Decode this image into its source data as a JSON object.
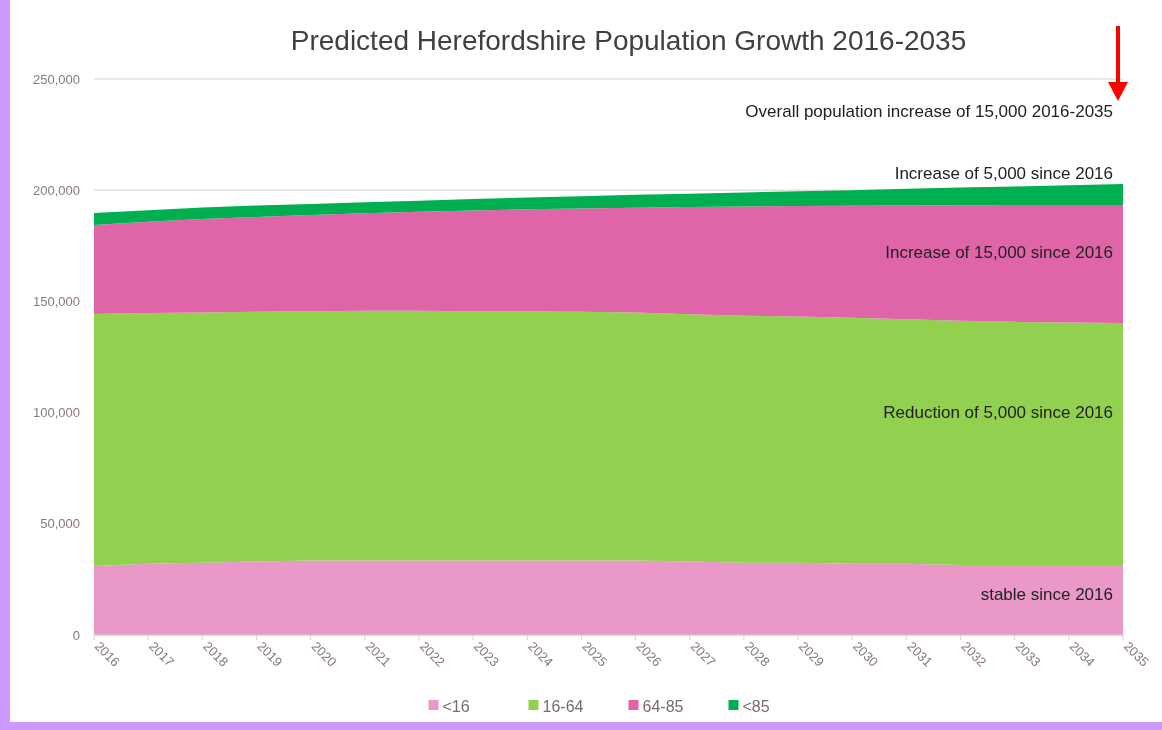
{
  "chart_data": {
    "type": "area",
    "stacked": true,
    "title": "Predicted Herefordshire Population Growth 2016-2035",
    "categories": [
      "2016",
      "2017",
      "2018",
      "2019",
      "2020",
      "2021",
      "2022",
      "2023",
      "2024",
      "2025",
      "2026",
      "2027",
      "2028",
      "2029",
      "2030",
      "2031",
      "2032",
      "2033",
      "2034",
      "2035"
    ],
    "series": [
      {
        "name": "<16",
        "color": "#e998c8",
        "values": [
          31000,
          32000,
          32500,
          33000,
          33500,
          33500,
          33500,
          33500,
          33500,
          33500,
          33500,
          33000,
          32500,
          32500,
          32000,
          32000,
          31500,
          31500,
          31500,
          31500
        ]
      },
      {
        "name": "16-64",
        "color": "#92d050",
        "values": [
          113300,
          112800,
          112500,
          112300,
          112100,
          112300,
          112300,
          112100,
          112000,
          111900,
          111500,
          111200,
          111100,
          110700,
          110600,
          110000,
          109800,
          109300,
          109000,
          108800
        ]
      },
      {
        "name": "64-85",
        "color": "#e064a8",
        "values": [
          40000,
          41000,
          42000,
          42700,
          43200,
          43800,
          44500,
          45300,
          45900,
          46400,
          47100,
          48200,
          49100,
          49700,
          50400,
          51100,
          51900,
          52500,
          52800,
          53000
        ]
      },
      {
        "name": "<85",
        "color": "#00b050",
        "values": [
          5400,
          5200,
          5200,
          5100,
          5000,
          5000,
          5000,
          5100,
          5300,
          5500,
          5800,
          6000,
          6300,
          6600,
          7000,
          7500,
          8000,
          8400,
          8900,
          9500
        ]
      }
    ],
    "ylim": [
      0,
      250000
    ],
    "yticks": [
      {
        "value": 0,
        "label": "0"
      },
      {
        "value": 50000,
        "label": "50,000"
      },
      {
        "value": 100000,
        "label": "100,000"
      },
      {
        "value": 150000,
        "label": "150,000"
      },
      {
        "value": 200000,
        "label": "200,000"
      },
      {
        "value": 250000,
        "label": "250,000"
      }
    ],
    "grid": "y",
    "legend": "bottom",
    "annotations": [
      "Overall population increase of 15,000 2016-2035",
      "Increase of 5,000 since 2016",
      {
        "text": "Increase of 15,000 since 2016",
        "x": "2035",
        "y": 172200
      },
      {
        "text": "Reduction of 5,000 since 2016",
        "x": "2035",
        "y": 100300
      },
      {
        "text": "stable since 2016",
        "x": "2035",
        "y": 18400
      }
    ]
  }
}
